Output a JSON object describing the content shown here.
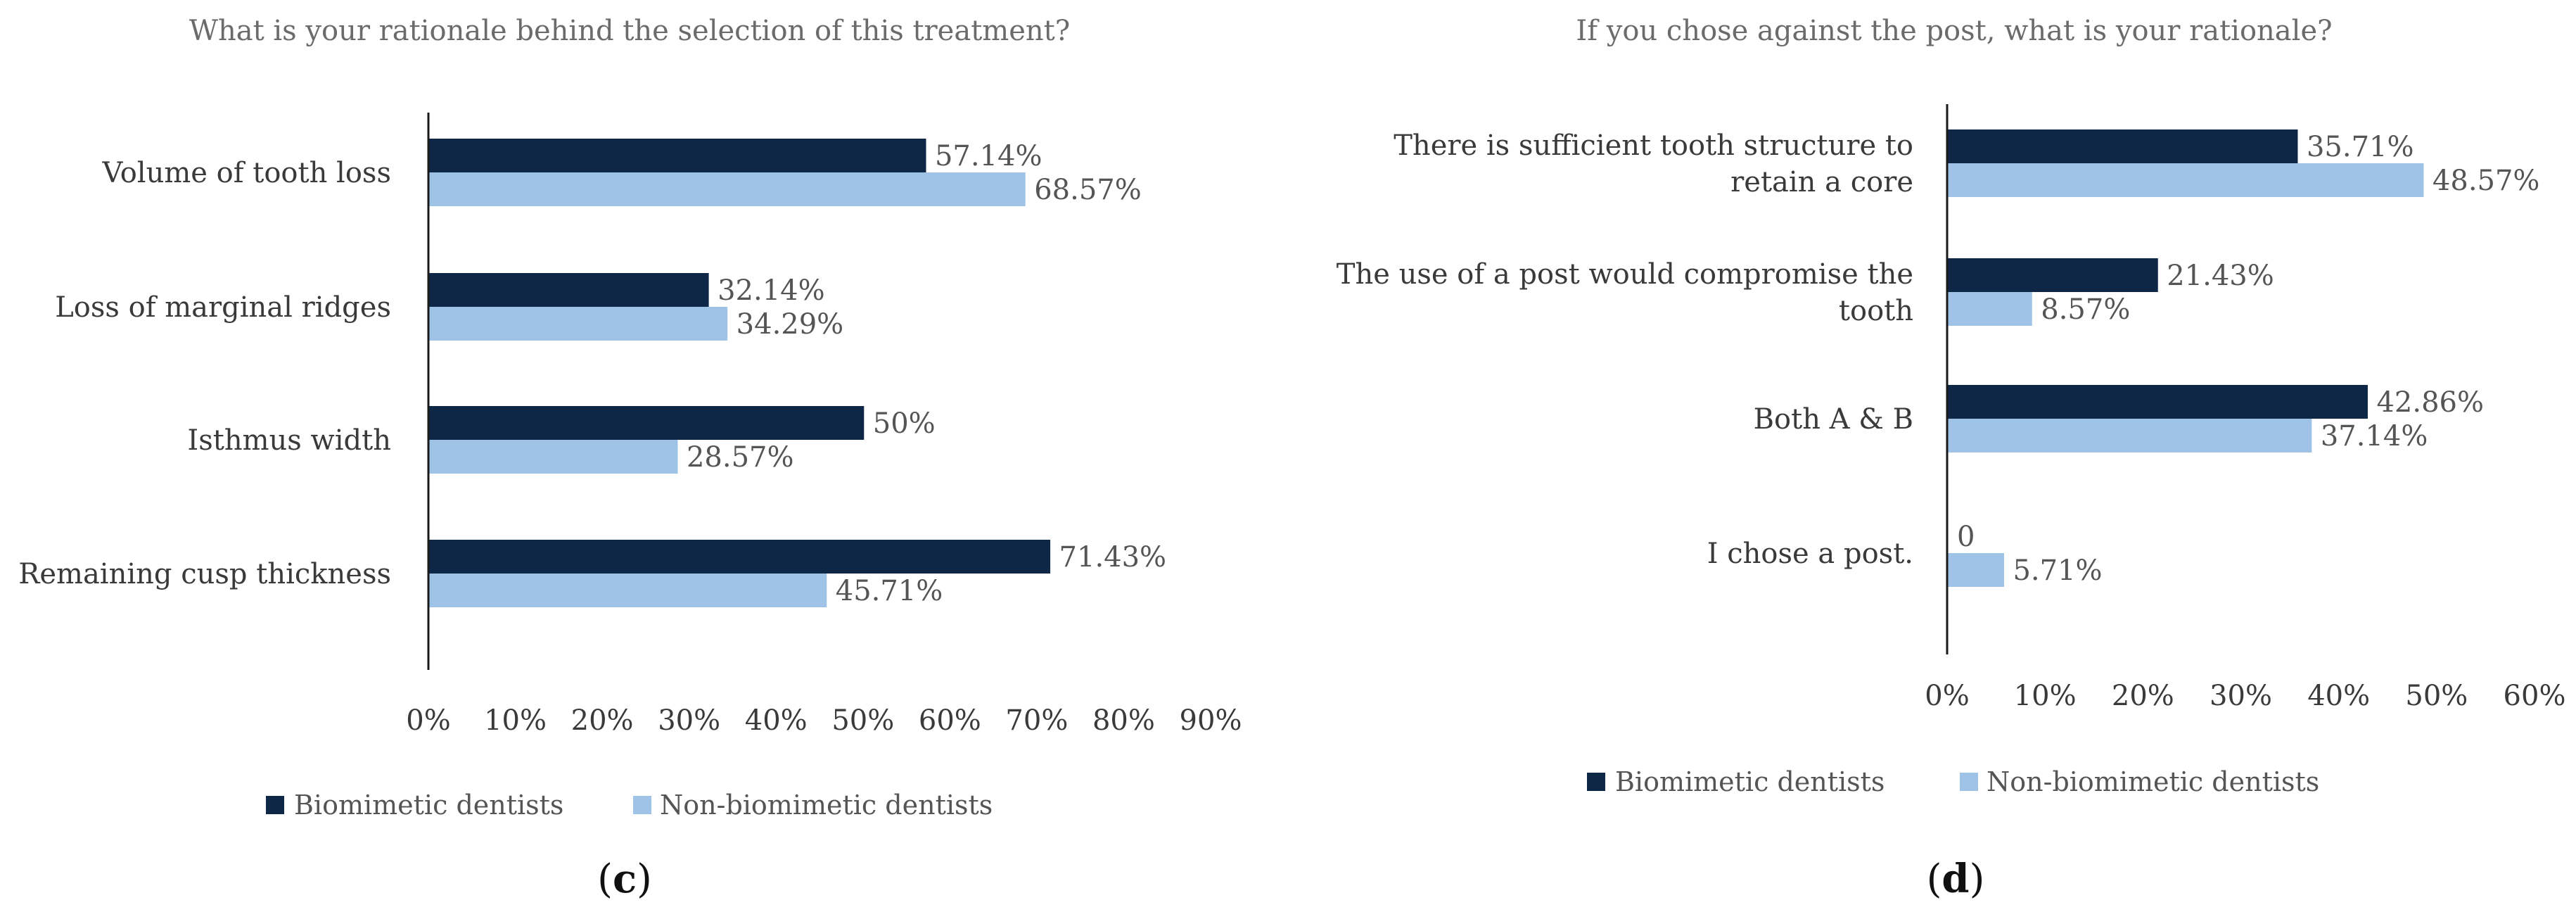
{
  "colors": {
    "biomimetic": "#0f2747",
    "non_biomimetic": "#9fc3e6"
  },
  "chart_data": [
    {
      "type": "bar",
      "orientation": "horizontal",
      "panel": "c",
      "title": "What is your rationale behind the selection of this treatment?",
      "categories": [
        [
          "Volume of tooth loss"
        ],
        [
          "Loss of marginal ridges"
        ],
        [
          "Isthmus width"
        ],
        [
          "Remaining  cusp thickness"
        ]
      ],
      "series": [
        {
          "name": "Biomimetic dentists",
          "values": [
            57.14,
            32.14,
            50,
            71.43
          ],
          "labels": [
            "57.14%",
            "32.14%",
            "50%",
            "71.43%"
          ]
        },
        {
          "name": "Non-biomimetic dentists",
          "values": [
            68.57,
            34.29,
            28.57,
            45.71
          ],
          "labels": [
            "68.57%",
            "34.29%",
            "28.57%",
            "45.71%"
          ]
        }
      ],
      "xlim": [
        0,
        90
      ],
      "ticks": [
        "0%",
        "10%",
        "20%",
        "30%",
        "40%",
        "50%",
        "60%",
        "70%",
        "80%",
        "90%"
      ],
      "legend": "bottom"
    },
    {
      "type": "bar",
      "orientation": "horizontal",
      "panel": "d",
      "title": "If you chose against the post, what is your rationale?",
      "categories": [
        [
          "There is sufficient tooth structure to",
          "retain a core"
        ],
        [
          "The use of a post would compromise the",
          "tooth"
        ],
        [
          "Both A & B"
        ],
        [
          "I chose a post."
        ]
      ],
      "series": [
        {
          "name": "Biomimetic dentists",
          "values": [
            35.71,
            21.43,
            42.86,
            0
          ],
          "labels": [
            "35.71%",
            "21.43%",
            "42.86%",
            "0"
          ]
        },
        {
          "name": "Non-biomimetic dentists",
          "values": [
            48.57,
            8.57,
            37.14,
            5.71
          ],
          "labels": [
            "48.57%",
            "8.57%",
            "37.14%",
            "5.71%"
          ]
        }
      ],
      "xlim": [
        0,
        60
      ],
      "ticks": [
        "0%",
        "10%",
        "20%",
        "30%",
        "40%",
        "50%",
        "60%"
      ],
      "legend": "bottom"
    }
  ]
}
